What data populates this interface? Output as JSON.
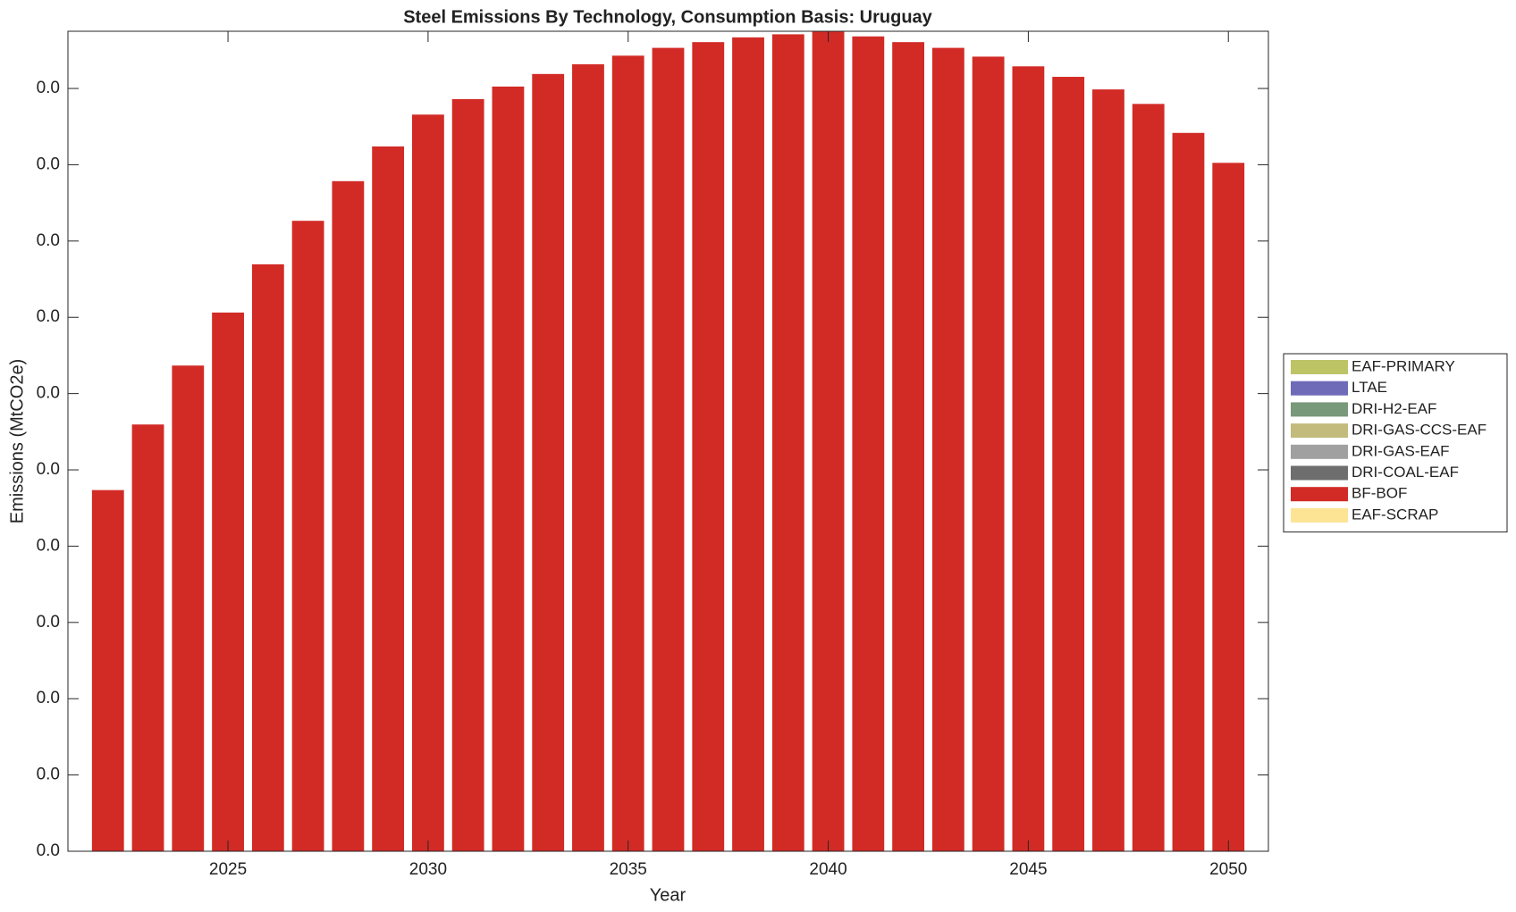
{
  "chart_data": {
    "type": "stacked_bar",
    "title": "Steel Emissions By Technology, Consumption Basis: Uruguay",
    "x_label": "Year",
    "y_label": "Emissions (MtCO2e)",
    "x": [
      2022,
      2023,
      2024,
      2025,
      2026,
      2027,
      2028,
      2029,
      2030,
      2031,
      2032,
      2033,
      2034,
      2035,
      2036,
      2037,
      2038,
      2039,
      2040,
      2041,
      2042,
      2043,
      2044,
      2045,
      2046,
      2047,
      2048,
      2049,
      2050
    ],
    "xlim": [
      2021,
      2051
    ],
    "xticks": [
      2025,
      2030,
      2035,
      2040,
      2045,
      2050
    ],
    "ylim": [
      0,
      0.043
    ],
    "yticks": [
      {
        "value": 0,
        "label": "0.0"
      },
      {
        "value": 0.004,
        "label": "0.0"
      },
      {
        "value": 0.008,
        "label": "0.0"
      },
      {
        "value": 0.012,
        "label": "0.0"
      },
      {
        "value": 0.016,
        "label": "0.0"
      },
      {
        "value": 0.02,
        "label": "0.0"
      },
      {
        "value": 0.024,
        "label": "0.0"
      },
      {
        "value": 0.028,
        "label": "0.0"
      },
      {
        "value": 0.032,
        "label": "0.0"
      },
      {
        "value": 0.036,
        "label": "0.0"
      },
      {
        "value": 0.04,
        "label": "0.0"
      }
    ],
    "legend": "outside-right",
    "series": [
      {
        "name": "EAF-PRIMARY",
        "color": "#bcc466",
        "values": [
          0,
          0,
          0,
          0,
          0,
          0,
          0,
          0,
          0,
          0,
          0,
          0,
          0,
          0,
          0,
          0,
          0,
          0,
          0,
          0,
          0,
          0,
          0,
          0,
          0,
          0,
          0,
          0,
          0
        ]
      },
      {
        "name": "LTAE",
        "color": "#6f6bb8",
        "values": [
          0,
          0,
          0,
          0,
          0,
          0,
          0,
          0,
          0,
          0,
          0,
          0,
          0,
          0,
          0,
          0,
          0,
          0,
          0,
          0,
          0,
          0,
          0,
          0,
          0,
          0,
          0,
          0,
          0
        ]
      },
      {
        "name": "DRI-H2-EAF",
        "color": "#78997a",
        "values": [
          0,
          0,
          0,
          0,
          0,
          0,
          0,
          0,
          0,
          0,
          0,
          0,
          0,
          0,
          0,
          0,
          0,
          0,
          0,
          0,
          0,
          0,
          0,
          0,
          0,
          0,
          0,
          0,
          0
        ]
      },
      {
        "name": "DRI-GAS-CCS-EAF",
        "color": "#c2bb7c",
        "values": [
          0,
          0,
          0,
          0,
          0,
          0,
          0,
          0,
          0,
          0,
          0,
          0,
          0,
          0,
          0,
          0,
          0,
          0,
          0,
          0,
          0,
          0,
          0,
          0,
          0,
          0,
          0,
          0,
          0
        ]
      },
      {
        "name": "DRI-GAS-EAF",
        "color": "#a0a0a0",
        "values": [
          0,
          0,
          0,
          0,
          0,
          0,
          0,
          0,
          0,
          0,
          0,
          0,
          0,
          0,
          0,
          0,
          0,
          0,
          0,
          0,
          0,
          0,
          0,
          0,
          0,
          0,
          0,
          0,
          0
        ]
      },
      {
        "name": "DRI-COAL-EAF",
        "color": "#6e6e6e",
        "values": [
          0,
          0,
          0,
          0,
          0,
          0,
          0,
          0,
          0,
          0,
          0,
          0,
          0,
          0,
          0,
          0,
          0,
          0,
          0,
          0,
          0,
          0,
          0,
          0,
          0,
          0,
          0,
          0,
          0
        ]
      },
      {
        "name": "BF-BOF",
        "color": "#d22b26",
        "values": [
          0.01894,
          0.02238,
          0.02547,
          0.02825,
          0.03078,
          0.03306,
          0.03514,
          0.03696,
          0.03863,
          0.03944,
          0.0401,
          0.04076,
          0.04127,
          0.04172,
          0.04213,
          0.04243,
          0.04268,
          0.04284,
          0.043,
          0.04273,
          0.04243,
          0.04213,
          0.04167,
          0.04116,
          0.04061,
          0.03995,
          0.03919,
          0.03767,
          0.0361
        ]
      },
      {
        "name": "EAF-SCRAP",
        "color": "#fde494",
        "values": [
          0,
          0,
          0,
          0,
          0,
          0,
          0,
          0,
          0,
          0,
          0,
          0,
          0,
          0,
          0,
          0,
          0,
          0,
          0,
          0,
          0,
          0,
          0,
          0,
          0,
          0,
          0,
          0,
          0
        ]
      }
    ]
  }
}
